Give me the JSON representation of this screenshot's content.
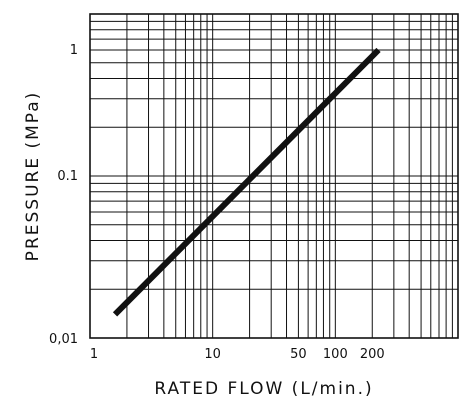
{
  "chart_data": {
    "type": "line",
    "title": "",
    "xlabel": "RATED FLOW (L/min.)",
    "ylabel": "PRESSURE (MPa)",
    "x_scale": "log",
    "y_scale": "log",
    "xlim": [
      1,
      1000
    ],
    "ylim": [
      0.01,
      1
    ],
    "grid": true,
    "x_tick_labels": [
      {
        "value": 1,
        "label": "1"
      },
      {
        "value": 10,
        "label": "10"
      },
      {
        "value": 50,
        "label": "50"
      },
      {
        "value": 100,
        "label": "100"
      },
      {
        "value": 200,
        "label": "200"
      }
    ],
    "y_tick_labels": [
      {
        "value": 0.01,
        "label": "0,01"
      },
      {
        "value": 0.1,
        "label": "0.1"
      },
      {
        "value": 1,
        "label": "1"
      }
    ],
    "series": [
      {
        "x": [
          1.6,
          225
        ],
        "y": [
          0.014,
          0.6
        ],
        "color": "#111111"
      }
    ]
  }
}
